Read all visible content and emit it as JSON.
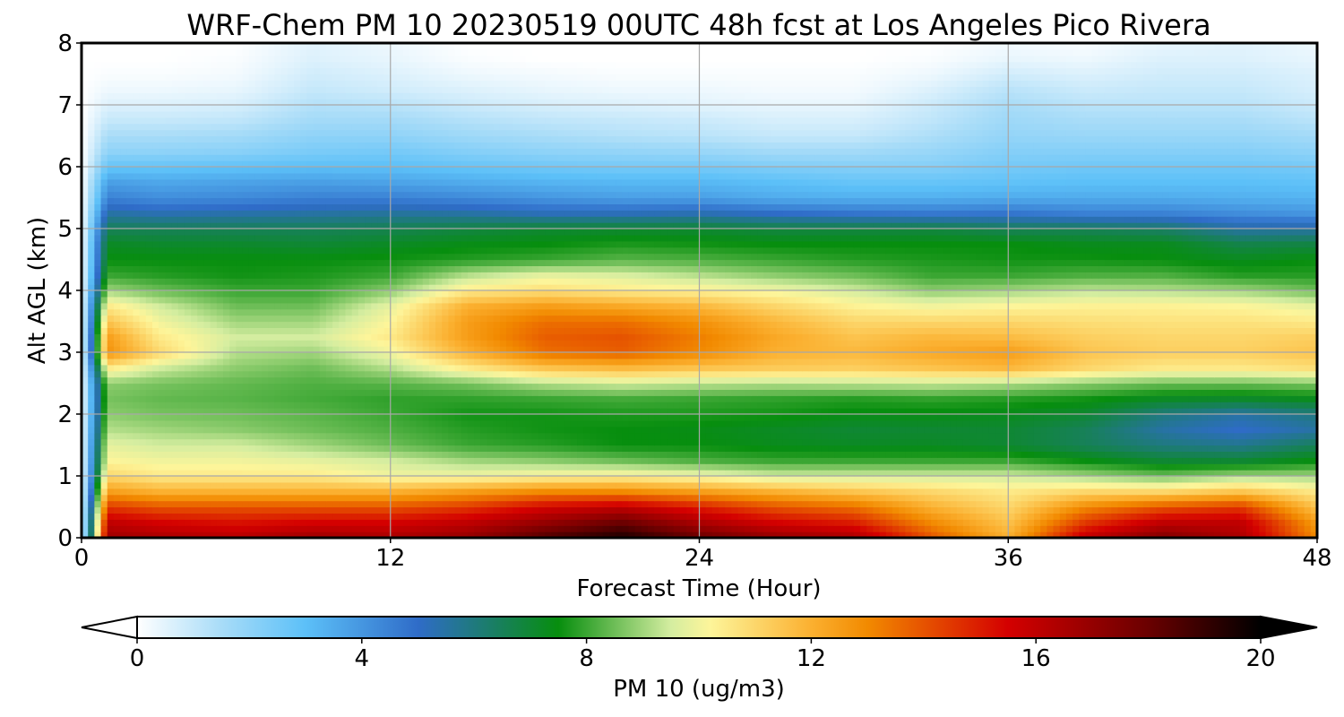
{
  "chart_data": {
    "type": "heatmap",
    "title": "WRF-Chem PM 10  20230519 00UTC 48h fcst at Los Angeles Pico Rivera",
    "xlabel": "Forecast Time (Hour)",
    "ylabel": "Alt AGL (km)",
    "xlim": [
      0,
      48
    ],
    "ylim": [
      0,
      8
    ],
    "x_ticks": [
      0,
      12,
      24,
      36,
      48
    ],
    "y_ticks": [
      0,
      1,
      2,
      3,
      4,
      5,
      6,
      7,
      8
    ],
    "grid": true,
    "colorbar": {
      "label": "PM 10  (ug/m3)",
      "range": [
        0,
        20
      ],
      "ticks": [
        0,
        4,
        8,
        12,
        16,
        20
      ],
      "extend": "both",
      "colors": [
        "#ffffff",
        "#a8dcf8",
        "#5cc0f8",
        "#2f6cc8",
        "#078e0e",
        "#d4eda0",
        "#fdf59a",
        "#fbb030",
        "#f28a00",
        "#d40000",
        "#6a0000",
        "#000000"
      ],
      "stops": [
        0,
        1.5,
        3,
        5,
        7.5,
        9.5,
        10.2,
        12,
        13,
        15.5,
        18,
        20
      ]
    },
    "time_hours": [
      0,
      1,
      3,
      6,
      9,
      12,
      15,
      18,
      21,
      24,
      27,
      30,
      33,
      36,
      39,
      42,
      45,
      48
    ],
    "altitude_km": [
      0,
      0.25,
      0.5,
      0.75,
      1,
      1.25,
      1.5,
      1.75,
      2,
      2.25,
      2.5,
      2.75,
      3,
      3.25,
      3.5,
      3.75,
      4,
      4.25,
      4.5,
      4.75,
      5,
      5.25,
      5.5,
      5.75,
      6,
      6.25,
      6.5,
      6.75,
      7,
      7.25,
      7.5,
      7.75,
      8
    ],
    "values": [
      [
        0,
        16.8,
        16.5,
        16.2,
        16.8,
        16.5,
        17,
        18.5,
        19.5,
        18,
        17,
        16.5,
        14,
        12,
        16,
        17.5,
        16.5,
        13
      ],
      [
        0,
        16,
        15.5,
        15.2,
        15.5,
        15.5,
        16,
        17,
        18,
        16.5,
        15.5,
        15,
        13,
        11.5,
        14.5,
        16,
        16,
        12.5
      ],
      [
        0,
        14.5,
        14,
        14,
        14,
        14,
        14.5,
        15.5,
        16,
        15,
        14,
        13.5,
        12,
        11,
        13,
        14,
        14.5,
        11.5
      ],
      [
        0,
        12.5,
        12,
        12,
        12,
        12,
        12.5,
        13,
        13,
        12.5,
        12,
        11.5,
        11,
        10.5,
        11,
        11,
        11.5,
        10.5
      ],
      [
        0,
        11,
        10.5,
        10.5,
        10.5,
        10,
        10,
        10.2,
        10.3,
        10,
        9.5,
        9.5,
        9.5,
        9.5,
        9,
        8.5,
        9,
        9
      ],
      [
        0,
        10.2,
        10,
        10,
        9.8,
        9.5,
        9,
        8.8,
        8.5,
        8.2,
        8,
        8,
        8,
        8,
        7.5,
        7,
        7,
        7.5
      ],
      [
        0,
        9.8,
        9.5,
        9.5,
        9,
        8.5,
        8,
        7.8,
        7.5,
        7.5,
        7.3,
        7.2,
        7.2,
        7,
        6.5,
        6,
        5.8,
        6.5
      ],
      [
        0,
        9.2,
        9,
        8.8,
        8.5,
        8.2,
        7.8,
        7.6,
        7.5,
        7.4,
        7.2,
        7,
        7,
        7,
        6.5,
        5.5,
        5,
        5.5
      ],
      [
        0,
        8.8,
        8.6,
        8.5,
        8.3,
        8,
        7.6,
        7.6,
        7.7,
        7.7,
        7.6,
        7.4,
        7.4,
        7.3,
        7,
        6,
        5.5,
        6
      ],
      [
        0,
        8.6,
        8.4,
        8.3,
        8.1,
        7.9,
        7.9,
        8,
        8.1,
        8,
        7.9,
        7.8,
        7.9,
        7.8,
        7.6,
        7.2,
        7.1,
        7.3
      ],
      [
        0,
        8.8,
        8.6,
        8.4,
        8.2,
        8.3,
        8.6,
        9.2,
        9.5,
        9.3,
        9.2,
        9.3,
        9.4,
        9.2,
        8.8,
        8.5,
        8.5,
        8.7
      ],
      [
        0,
        10.5,
        9.5,
        8.8,
        8.5,
        9.2,
        10.5,
        11.5,
        11.8,
        11.5,
        11.3,
        11.2,
        11.5,
        11.8,
        11,
        10.5,
        10.5,
        10.8
      ],
      [
        0,
        12.8,
        11,
        9.2,
        9,
        10,
        12,
        13.5,
        13.8,
        13,
        12,
        11.8,
        12.2,
        12.5,
        11.5,
        11.2,
        11.2,
        11.5
      ],
      [
        0,
        12.5,
        10.5,
        9.5,
        9.5,
        10.5,
        12.5,
        13.8,
        14,
        13.2,
        12.2,
        11.5,
        11.8,
        11.7,
        11.2,
        11,
        11,
        11.2
      ],
      [
        0,
        11.5,
        10,
        9,
        9,
        10.2,
        12.5,
        13.5,
        13.5,
        12.8,
        11.8,
        11,
        11,
        11,
        10.8,
        10.7,
        10.7,
        10.5
      ],
      [
        0,
        10.5,
        9.5,
        8.5,
        8.5,
        9.8,
        12,
        12.5,
        12.2,
        11.8,
        11,
        10.3,
        10,
        10.2,
        10.3,
        10.3,
        10.2,
        9.8
      ],
      [
        0,
        9,
        8.5,
        8,
        8,
        8.8,
        10.5,
        10.8,
        10.5,
        10.3,
        10,
        9.5,
        8.8,
        9,
        9.3,
        9.2,
        9,
        8.5
      ],
      [
        0,
        8,
        7.8,
        7.6,
        7.7,
        8,
        9.2,
        9.8,
        9.6,
        9.2,
        8.8,
        8.5,
        8,
        8,
        8.2,
        8.2,
        7.8,
        7.8
      ],
      [
        0,
        7.5,
        7.5,
        7.5,
        7.5,
        7.6,
        7.8,
        8,
        8.3,
        8.2,
        8,
        7.8,
        7.7,
        7.6,
        7.6,
        7.5,
        7.3,
        7.5
      ],
      [
        0,
        7.2,
        7.1,
        7.1,
        7,
        7.2,
        7.4,
        7.5,
        7.7,
        7.6,
        7.5,
        7.5,
        7.5,
        7.5,
        7.3,
        7.3,
        6.7,
        6.8
      ],
      [
        0,
        6.5,
        6.5,
        6.5,
        6.5,
        6.6,
        6.8,
        7,
        7,
        7,
        6.8,
        6.8,
        6.8,
        6.5,
        6.5,
        6.3,
        5.5,
        5.5
      ],
      [
        0,
        5.5,
        5.3,
        5.4,
        5.5,
        5.6,
        5.5,
        5.2,
        5.2,
        5.3,
        5,
        4.8,
        4.7,
        4.8,
        4.5,
        4.5,
        4.2,
        4
      ],
      [
        0,
        4.5,
        4.2,
        4.3,
        4.5,
        4.5,
        4.3,
        4,
        3.8,
        3.8,
        3.5,
        3.4,
        3.4,
        3.5,
        3.5,
        3.5,
        3.4,
        3.3
      ],
      [
        0,
        3.8,
        3.6,
        3.7,
        3.8,
        3.7,
        3.5,
        3.3,
        3.2,
        3.2,
        3,
        2.8,
        2.8,
        2.9,
        3,
        3,
        3,
        2.9
      ],
      [
        0,
        2.8,
        2.8,
        2.9,
        3,
        3,
        2.8,
        2.6,
        2.5,
        2.5,
        2.3,
        2.2,
        2.2,
        2.5,
        2.6,
        2.6,
        2.6,
        2.5
      ],
      [
        0,
        2,
        2,
        2.1,
        2.4,
        2.5,
        2.2,
        2,
        1.9,
        1.8,
        1.6,
        1.6,
        1.8,
        2.2,
        2.2,
        2.2,
        2.2,
        2
      ],
      [
        0,
        1.5,
        1.5,
        1.6,
        2,
        2,
        1.7,
        1.5,
        1.3,
        1.2,
        1,
        1,
        1.4,
        1.9,
        1.8,
        1.8,
        1.8,
        1.6
      ],
      [
        0,
        1,
        1,
        1.1,
        1.6,
        1.6,
        1.3,
        1.1,
        1,
        0.9,
        0.7,
        0.7,
        1.1,
        1.7,
        1.5,
        1.5,
        1.5,
        1.2
      ],
      [
        0,
        0.6,
        0.6,
        0.7,
        1.3,
        1.2,
        0.9,
        0.7,
        0.6,
        0.5,
        0.4,
        0.4,
        0.9,
        1.5,
        1.2,
        1.2,
        1.2,
        0.9
      ],
      [
        0,
        0.3,
        0.3,
        0.4,
        1,
        0.8,
        0.6,
        0.4,
        0.3,
        0.3,
        0.2,
        0.2,
        0.6,
        1.2,
        0.9,
        1,
        1,
        0.7
      ],
      [
        0,
        0.1,
        0.1,
        0.2,
        0.8,
        0.6,
        0.3,
        0.2,
        0.1,
        0.1,
        0.1,
        0.1,
        0.3,
        0.8,
        0.6,
        0.8,
        0.8,
        0.6
      ],
      [
        0,
        0,
        0,
        0.1,
        0.6,
        0.4,
        0.1,
        0,
        0,
        0,
        0,
        0,
        0.1,
        0.4,
        0.3,
        0.6,
        0.6,
        0.4
      ],
      [
        0,
        0,
        0,
        0,
        0.5,
        0.3,
        0,
        0,
        0,
        0,
        0,
        0,
        0,
        0.2,
        0.1,
        0.4,
        0.5,
        0.3
      ]
    ]
  }
}
